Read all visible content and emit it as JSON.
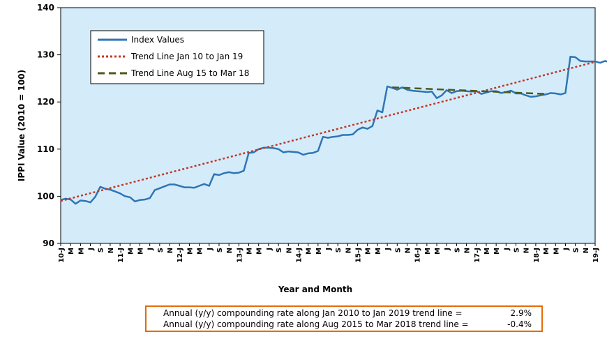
{
  "chart_data": {
    "type": "line",
    "ylabel": "IPPI Value (2010 = 100)",
    "xlabel": "Year and Month",
    "ylim": [
      90,
      140
    ],
    "yticks": [
      90,
      100,
      110,
      120,
      130,
      140
    ],
    "x_tick_labels": [
      "10-J",
      "M",
      "M",
      "J",
      "S",
      "N",
      "11-J",
      "M",
      "M",
      "J",
      "S",
      "N",
      "12-J",
      "M",
      "M",
      "J",
      "S",
      "N",
      "13-J",
      "M",
      "M",
      "J",
      "S",
      "N",
      "14-J",
      "M",
      "M",
      "J",
      "S",
      "N",
      "15-J",
      "M",
      "M",
      "J",
      "S",
      "N",
      "16-J",
      "M",
      "M",
      "J",
      "S",
      "N",
      "17-J",
      "M",
      "M",
      "J",
      "S",
      "N",
      "18-J",
      "M",
      "M",
      "J",
      "S",
      "N",
      "19-J"
    ],
    "legend_position": "top-left",
    "grid": false,
    "series": [
      {
        "name": "Index Values",
        "color": "#2e75b6",
        "style": "solid",
        "values": [
          99.2,
          99.5,
          99.3,
          98.4,
          99.1,
          99.0,
          98.7,
          99.9,
          102.0,
          101.6,
          101.4,
          101.0,
          100.6,
          100.0,
          99.8,
          98.9,
          99.2,
          99.3,
          99.6,
          101.3,
          101.7,
          102.1,
          102.5,
          102.5,
          102.2,
          101.9,
          101.9,
          101.8,
          102.2,
          102.6,
          102.2,
          104.7,
          104.5,
          104.9,
          105.1,
          104.9,
          105.0,
          105.4,
          109.2,
          109.3,
          110.0,
          110.3,
          110.3,
          110.2,
          110.0,
          109.3,
          109.5,
          109.4,
          109.3,
          108.8,
          109.1,
          109.2,
          109.6,
          112.6,
          112.4,
          112.6,
          112.7,
          113.0,
          113.0,
          113.1,
          114.1,
          114.6,
          114.3,
          114.9,
          118.2,
          117.8,
          123.3,
          123.0,
          122.6,
          123.1,
          122.6,
          122.4,
          122.3,
          122.2,
          122.1,
          122.2,
          120.8,
          121.4,
          122.5,
          121.9,
          122.3,
          122.4,
          122.3,
          122.2,
          122.3,
          121.7,
          122.0,
          122.3,
          122.3,
          121.9,
          122.1,
          122.4,
          121.8,
          121.8,
          121.4,
          121.1,
          121.2,
          121.4,
          121.6,
          121.9,
          121.8,
          121.6,
          121.9,
          129.6,
          129.5,
          128.7,
          128.6,
          128.6,
          128.6,
          128.3,
          128.7,
          128.4
        ]
      },
      {
        "name": "Trend Line Jan 10 to Jan 19",
        "color": "#c0392b",
        "style": "dotted",
        "points": [
          [
            0,
            99.0
          ],
          [
            108,
            128.5
          ]
        ]
      },
      {
        "name": "Trend Line Aug 15 to Mar 18",
        "color": "#4a5a1a",
        "style": "dashed",
        "points": [
          [
            67,
            123.1
          ],
          [
            98,
            121.7
          ]
        ]
      }
    ]
  },
  "rates": [
    {
      "label": "Annual (y/y) compounding rate along Jan 2010 to Jan 2019 trend line =",
      "value": "2.9%"
    },
    {
      "label": "Annual (y/y) compounding rate along Aug 2015 to Mar 2018 trend line =",
      "value": "-0.4%"
    }
  ]
}
